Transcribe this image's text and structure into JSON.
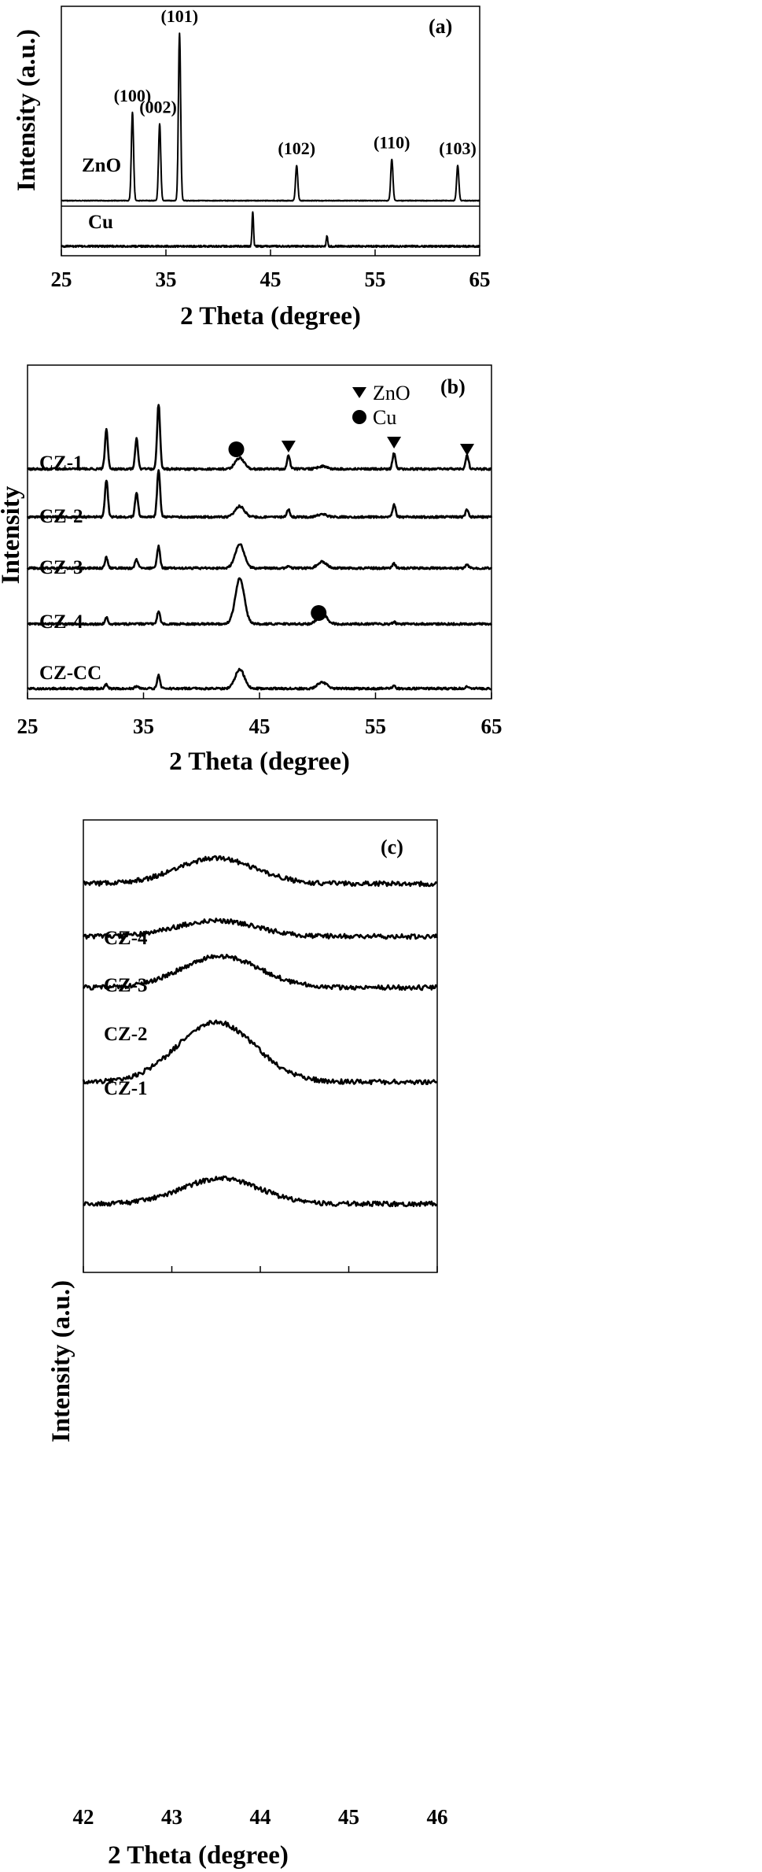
{
  "chart_data": [
    {
      "panel": "(a)",
      "type": "line",
      "xlabel": "2 Theta (degree)",
      "ylabel": "Intensity (a.u.)",
      "xlim": [
        25,
        65
      ],
      "xticks": [
        "25",
        "35",
        "45",
        "55",
        "65"
      ],
      "series": [
        {
          "name": "ZnO",
          "peaks": [
            {
              "x": 31.8,
              "h": 1.0,
              "label": "(100)"
            },
            {
              "x": 34.4,
              "h": 0.87,
              "label": "(002)"
            },
            {
              "x": 36.3,
              "h": 1.9,
              "label": "(101)"
            },
            {
              "x": 47.5,
              "h": 0.4,
              "label": "(102)"
            },
            {
              "x": 56.6,
              "h": 0.47,
              "label": "(110)"
            },
            {
              "x": 62.9,
              "h": 0.4,
              "label": "(103)"
            }
          ]
        },
        {
          "name": "Cu",
          "peaks": [
            {
              "x": 43.3,
              "h": 0.4
            },
            {
              "x": 50.4,
              "h": 0.12
            }
          ]
        }
      ]
    },
    {
      "panel": "(b)",
      "type": "line",
      "xlabel": "2 Theta (degree)",
      "ylabel": "Intensity",
      "xlim": [
        25,
        65
      ],
      "xticks": [
        "25",
        "35",
        "45",
        "55",
        "65"
      ],
      "legend": [
        {
          "marker": "triangle",
          "label": "ZnO"
        },
        {
          "marker": "circle",
          "label": "Cu"
        }
      ],
      "series": [
        {
          "name": "CZ-1",
          "peaks": [
            [
              31.8,
              0.9
            ],
            [
              34.4,
              0.7
            ],
            [
              36.3,
              1.5
            ],
            [
              43.3,
              0.25
            ],
            [
              47.5,
              0.3
            ],
            [
              50.4,
              0.06
            ],
            [
              56.6,
              0.37
            ],
            [
              62.9,
              0.32
            ]
          ]
        },
        {
          "name": "CZ-2",
          "peaks": [
            [
              31.8,
              0.85
            ],
            [
              34.4,
              0.55
            ],
            [
              36.3,
              1.1
            ],
            [
              43.3,
              0.25
            ],
            [
              47.5,
              0.18
            ],
            [
              50.4,
              0.06
            ],
            [
              56.6,
              0.28
            ],
            [
              62.9,
              0.18
            ]
          ]
        },
        {
          "name": "CZ-3",
          "peaks": [
            [
              31.8,
              0.25
            ],
            [
              34.4,
              0.2
            ],
            [
              36.3,
              0.5
            ],
            [
              43.3,
              0.55
            ],
            [
              47.5,
              0.05
            ],
            [
              50.4,
              0.15
            ],
            [
              56.6,
              0.1
            ],
            [
              62.9,
              0.08
            ]
          ]
        },
        {
          "name": "CZ-4",
          "peaks": [
            [
              31.8,
              0.15
            ],
            [
              36.3,
              0.3
            ],
            [
              43.3,
              1.05
            ],
            [
              50.4,
              0.25
            ],
            [
              56.6,
              0.05
            ]
          ]
        },
        {
          "name": "CZ-CC",
          "peaks": [
            [
              31.8,
              0.1
            ],
            [
              34.4,
              0.05
            ],
            [
              36.3,
              0.3
            ],
            [
              43.3,
              0.45
            ],
            [
              50.4,
              0.15
            ],
            [
              56.6,
              0.05
            ],
            [
              62.9,
              0.05
            ]
          ]
        }
      ]
    },
    {
      "panel": "(c)",
      "type": "line",
      "xlabel": "2 Theta (degree)",
      "ylabel": "Intensity (a.u.)",
      "xlim": [
        42,
        46
      ],
      "xticks": [
        "42",
        "43",
        "44",
        "45",
        "46"
      ],
      "series": [
        {
          "name": "CZ-4",
          "peak": 43.5,
          "h": 0.95
        },
        {
          "name": "CZ-3",
          "peak": 43.5,
          "h": 0.6
        },
        {
          "name": "CZ-2",
          "peak": 43.55,
          "h": 1.05
        },
        {
          "name": "CZ-1",
          "peak": 43.5,
          "h": 2.0
        },
        {
          "name": "",
          "peak": 43.55,
          "h": 0.95
        }
      ]
    }
  ]
}
